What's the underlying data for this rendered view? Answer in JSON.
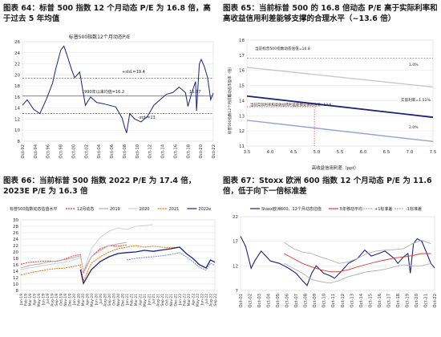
{
  "captions": [
    "图表 64：标普 500 指数 12 个月动态 P/E 为 16.8 倍，高于过去 5 年均值",
    "图表 65：当前标普 500 的 16.8 倍动态 P/E 高于实际利率和高收益信用利差能够支撑的合理水平（~13.6 倍）",
    "图表 66：当前标普 500 指数 2022 P/E 为 17.4 倍，2023E P/E 为 16.3 倍",
    "图表 67：Stoxx 欧洲 600 指数 12 个月动态 P/E 为 11.6 倍，低于向下一倍标准差"
  ],
  "chart_data": [
    {
      "type": "line",
      "title": "标普500指数12个月动态P/E",
      "ylim": [
        8,
        26
      ],
      "yticks": [
        8,
        10,
        12,
        14,
        16,
        18,
        20,
        22,
        24,
        26
      ],
      "xticks": [
        "Oct-92",
        "Oct-94",
        "Oct-96",
        "Oct-98",
        "Oct-00",
        "Oct-02",
        "Oct-04",
        "Oct-06",
        "Oct-08",
        "Oct-10",
        "Oct-12",
        "Oct-14",
        "Oct-16",
        "Oct-18",
        "Oct-20",
        "Oct-22"
      ],
      "x_start": 1992.75,
      "x_end": 2022.9,
      "series": [
        {
          "name": "标普500指数12个月动态P/E",
          "color": "#1a237e",
          "x": [
            1992.75,
            1993.5,
            1994.5,
            1995.5,
            1996.5,
            1997.5,
            1998.0,
            1998.8,
            1999.3,
            1999.8,
            2000.5,
            2001.0,
            2001.8,
            2002.7,
            2003.5,
            2004.5,
            2005.5,
            2006.5,
            2007.5,
            2008.5,
            2008.9,
            2009.2,
            2009.7,
            2010.5,
            2011.5,
            2012.5,
            2013.5,
            2014.5,
            2015.5,
            2016.5,
            2017.5,
            2018.5,
            2018.9,
            2019.5,
            2020.1,
            2020.25,
            2020.7,
            2021.0,
            2021.5,
            2022.0,
            2022.5,
            2022.9
          ],
          "y": [
            14.5,
            15.5,
            13.8,
            13.0,
            15.5,
            18.5,
            21.0,
            24.5,
            25.2,
            23.5,
            21.0,
            19.5,
            20.5,
            14.5,
            16.0,
            15.0,
            14.8,
            14.5,
            14.2,
            12.2,
            10.5,
            9.5,
            13.0,
            12.0,
            11.5,
            12.5,
            14.5,
            15.5,
            16.5,
            16.8,
            17.8,
            16.8,
            14.3,
            16.8,
            18.8,
            13.5,
            22.0,
            22.8,
            21.5,
            19.5,
            15.5,
            16.7
          ]
        },
        {
          "name": "+std.=19.4",
          "value": 19.4,
          "color": "#e53935"
        },
        {
          "name": "1990年以来均值=16.2",
          "value": 16.2,
          "color": "#e53935"
        },
        {
          "name": "-std.=13",
          "value": 13.0,
          "color": "#e53935"
        }
      ],
      "annotations": [
        "+std.=19.4",
        "1990年以来均值=16.2",
        "-std.=13",
        "16.77"
      ]
    },
    {
      "type": "line",
      "xlabel": "高收益信用利差（ppt）",
      "ylabel": "标普500指数12个月前瞻动态市盈率（倍）",
      "xlim": [
        3.5,
        7.5
      ],
      "ylim": [
        11,
        18
      ],
      "xticks": [
        3.5,
        4.0,
        4.5,
        5.0,
        5.5,
        6.0,
        6.5,
        7.0,
        7.5
      ],
      "yticks": [
        11,
        12,
        13,
        14,
        15,
        16,
        17,
        18
      ],
      "series": [
        {
          "name": "实际利率=1.0%",
          "color": "#c8c8c8",
          "x": [
            3.5,
            7.5
          ],
          "y": [
            16.2,
            14.9
          ]
        },
        {
          "name": "实际利率=1.51%",
          "color": "#1a237e",
          "x": [
            3.5,
            7.5
          ],
          "y": [
            14.3,
            12.9
          ]
        },
        {
          "name": "实际利率=2.0%",
          "color": "#90a4d4",
          "x": [
            3.5,
            7.5
          ],
          "y": [
            12.7,
            11.3
          ]
        },
        {
          "name": "当前标普500指数动态估值=16.8",
          "value": 16.8,
          "color": "#888888"
        }
      ],
      "marker": {
        "x": 4.95,
        "y": 13.6
      },
      "annotations": [
        "当前标普500指数动态估值=16.8",
        "1.0%",
        "实际利率=1.51%",
        "2.0%",
        "当前实际利率和高收益债利差能够支撑的估值=13.6"
      ]
    },
    {
      "type": "line",
      "title": "标普500指数动态估值水平",
      "ylim": [
        8,
        30
      ],
      "yticks": [
        8,
        10,
        12,
        14,
        16,
        18,
        20,
        22,
        24,
        26,
        28,
        30
      ],
      "xticks": [
        "Jan-19",
        "Feb-19",
        "Mar-19",
        "Apr-19",
        "May-19",
        "Jun-19",
        "Jul-19",
        "Aug-19",
        "Sep-19",
        "Oct-19",
        "Nov-19",
        "Dec-19",
        "Jan-20",
        "Feb-20",
        "Mar-20",
        "Apr-20",
        "May-20",
        "Jun-20",
        "Jul-20",
        "Aug-20",
        "Sep-20",
        "Oct-20",
        "Nov-20",
        "Dec-20",
        "Jan-21",
        "Feb-21",
        "Mar-21",
        "Apr-21",
        "May-21",
        "Jun-21",
        "Jul-21",
        "Aug-21",
        "Sep-21",
        "Oct-21",
        "Nov-21",
        "Dec-21",
        "Jan-22",
        "Feb-22",
        "Mar-22",
        "Apr-22",
        "May-22",
        "Jun-22",
        "Jul-22",
        "Aug-22",
        "Sep-22"
      ],
      "series": [
        {
          "name": "12月动态",
          "color": "#e53935",
          "dash": true,
          "x": [
            0,
            2,
            4,
            6,
            8,
            10,
            12,
            13.5,
            14.2,
            16,
            18,
            20,
            22,
            24
          ],
          "y": [
            16.2,
            16.8,
            17.0,
            17.2,
            17.0,
            17.8,
            18.8,
            19.2,
            13.5,
            18.5,
            21.0,
            22.0,
            21.8,
            22.2
          ]
        },
        {
          "name": "2019",
          "color": "#b0b0b0",
          "x": [
            0,
            2,
            4,
            6,
            8,
            10,
            12,
            13.5,
            14.2,
            16,
            18,
            20,
            22,
            24
          ],
          "y": [
            15.0,
            15.8,
            16.2,
            16.8,
            17.2,
            17.6,
            18.2,
            18.8,
            14.0,
            18.5,
            20.5,
            22.0,
            22.5,
            23.0
          ]
        },
        {
          "name": "2020",
          "color": "#cfcfcf",
          "x": [
            0,
            2,
            4,
            6,
            8,
            10,
            12,
            13.5,
            14.2,
            16,
            18,
            20,
            22,
            24,
            26,
            28,
            30
          ],
          "y": [
            14.5,
            15.0,
            15.5,
            16.0,
            16.4,
            16.8,
            17.5,
            18.2,
            14.0,
            21.0,
            24.5,
            26.5,
            27.5,
            27.0,
            28.0,
            28.2,
            28.5
          ]
        },
        {
          "name": "2021",
          "color": "#ef6c00",
          "dash": true,
          "x": [
            0,
            2,
            4,
            6,
            8,
            10,
            12,
            13.5,
            14.2,
            16,
            18,
            20,
            22,
            24,
            26,
            28,
            30,
            32,
            34,
            36
          ],
          "y": [
            12.8,
            13.5,
            14.0,
            14.5,
            14.8,
            15.0,
            15.5,
            16.0,
            11.0,
            16.5,
            18.5,
            20.0,
            21.0,
            21.5,
            22.0,
            21.5,
            21.8,
            21.5,
            21.3,
            21.5
          ]
        },
        {
          "name": "2022e",
          "color": "#1a237e",
          "x": [
            13.5,
            14.2,
            16,
            18,
            20,
            22,
            24,
            26,
            28,
            30,
            32,
            34,
            36,
            37.5,
            39,
            40.5,
            42,
            43,
            44
          ],
          "y": [
            14.5,
            10.2,
            14.5,
            17.0,
            18.5,
            19.5,
            19.8,
            20.0,
            20.5,
            20.2,
            20.6,
            21.0,
            21.5,
            19.5,
            18.0,
            16.0,
            15.0,
            17.5,
            16.8
          ]
        },
        {
          "name": "2023e",
          "color": "#7986cb",
          "dash": true,
          "x": [
            24,
            26,
            28,
            30,
            32,
            34,
            36,
            37.5,
            39,
            40.5,
            42,
            43,
            44
          ],
          "y": [
            17.5,
            18.0,
            18.3,
            18.5,
            18.8,
            19.2,
            19.8,
            18.5,
            17.0,
            15.2,
            14.3,
            16.5,
            15.8
          ]
        }
      ],
      "legend": [
        "12月动态",
        "2019",
        "2020",
        "2021",
        "2022e",
        "2023e"
      ]
    },
    {
      "type": "line",
      "ylim": [
        7,
        22
      ],
      "yticks": [
        7,
        12,
        17,
        22
      ],
      "xticks": [
        "Oct-01",
        "Oct-02",
        "Oct-03",
        "Oct-04",
        "Oct-05",
        "Oct-06",
        "Oct-07",
        "Oct-08",
        "Oct-09",
        "Oct-10",
        "Oct-11",
        "Oct-12",
        "Oct-13",
        "Oct-14",
        "Oct-15",
        "Oct-16",
        "Oct-17",
        "Oct-18",
        "Oct-19",
        "Oct-20",
        "Oct-21",
        "Oct-22"
      ],
      "x_start": 2001.75,
      "x_end": 2022.9,
      "series": [
        {
          "name": "Stoxx欧洲600，12个月动态估值",
          "color": "#1a237e",
          "x": [
            2001.75,
            2002.3,
            2002.9,
            2003.3,
            2004.0,
            2005.0,
            2006.0,
            2007.0,
            2007.8,
            2008.5,
            2009.0,
            2009.5,
            2010.0,
            2010.8,
            2011.5,
            2012.0,
            2012.8,
            2013.5,
            2014.5,
            2015.3,
            2016.0,
            2016.8,
            2017.5,
            2018.5,
            2018.9,
            2019.5,
            2020.0,
            2020.25,
            2020.6,
            2021.0,
            2021.5,
            2022.0,
            2022.5,
            2022.9
          ],
          "y": [
            18.0,
            16.0,
            11.5,
            13.0,
            15.0,
            13.0,
            12.5,
            11.5,
            10.5,
            9.0,
            8.0,
            10.5,
            12.0,
            10.5,
            10.0,
            9.5,
            11.0,
            12.5,
            13.5,
            15.2,
            14.0,
            14.5,
            15.0,
            13.5,
            12.5,
            13.8,
            14.5,
            10.5,
            16.5,
            17.5,
            17.0,
            14.8,
            12.5,
            11.6
          ]
        },
        {
          "name": "5年移动平均",
          "color": "#e53935",
          "x": [
            2006.5,
            2007.5,
            2008.5,
            2009.5,
            2010.5,
            2011.5,
            2012.5,
            2013.5,
            2014.5,
            2015.5,
            2016.5,
            2017.5,
            2018.5,
            2019.5,
            2020.5,
            2021.5,
            2022.5
          ],
          "y": [
            14.5,
            13.5,
            12.5,
            11.8,
            11.2,
            10.8,
            10.8,
            11.2,
            11.8,
            12.3,
            12.8,
            13.2,
            13.6,
            13.8,
            14.1,
            14.5,
            14.5
          ]
        },
        {
          "name": "+1标准差",
          "color": "#b0b0b0",
          "x": [
            2006.5,
            2007.5,
            2008.5,
            2009.5,
            2010.5,
            2011.5,
            2012.5,
            2013.5,
            2014.5,
            2015.5,
            2016.5,
            2017.5,
            2018.5,
            2019.5,
            2020.5,
            2021.5,
            2022.5
          ],
          "y": [
            16.8,
            15.5,
            14.8,
            14.5,
            13.8,
            13.2,
            12.5,
            12.8,
            13.5,
            14.5,
            15.0,
            15.2,
            15.3,
            15.5,
            16.5,
            17.2,
            16.5
          ]
        },
        {
          "name": "-1标准差",
          "color": "#b0b0b0",
          "x": [
            2006.5,
            2007.5,
            2008.5,
            2009.5,
            2010.5,
            2011.5,
            2012.5,
            2013.5,
            2014.5,
            2015.5,
            2016.5,
            2017.5,
            2018.5,
            2019.5,
            2020.5,
            2021.5,
            2022.5
          ],
          "y": [
            12.5,
            11.5,
            10.5,
            9.2,
            8.8,
            8.5,
            9.0,
            9.8,
            10.3,
            10.8,
            11.0,
            11.3,
            11.8,
            12.2,
            12.0,
            12.0,
            12.5
          ]
        }
      ],
      "legend": [
        "Stoxx欧洲600，12个月动态估值",
        "5年移动平均",
        "+1标准差",
        "-1标准差"
      ]
    }
  ]
}
